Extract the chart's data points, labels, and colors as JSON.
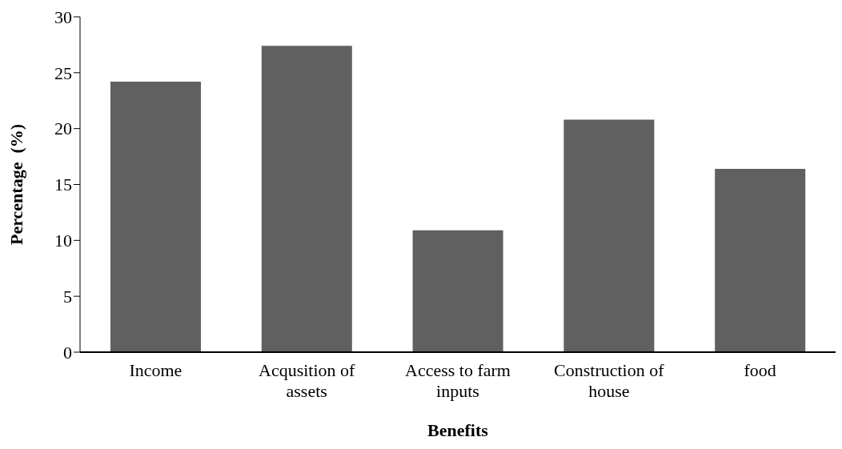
{
  "chart_data": {
    "type": "bar",
    "xlabel": "Benefits",
    "ylabel": "Percentage  (%)",
    "categories": [
      "Income",
      "Acqusition of assets",
      "Access to farm inputs",
      "Construction of house",
      "food"
    ],
    "values": [
      24.2,
      27.4,
      10.9,
      20.8,
      16.4
    ],
    "color": "#606060",
    "ylim": [
      0,
      30
    ],
    "yticks": [
      0,
      5,
      10,
      15,
      20,
      25,
      30
    ],
    "grid": false,
    "legend": false
  }
}
